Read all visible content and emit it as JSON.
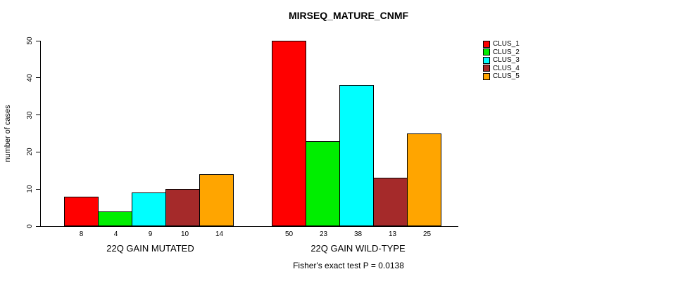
{
  "chart_data": {
    "type": "bar",
    "title": "MIRSEQ_MATURE_CNMF",
    "ylabel": "number of cases",
    "xlabel": "",
    "ylim": [
      0,
      50
    ],
    "yticks": [
      0,
      10,
      20,
      30,
      40,
      50
    ],
    "grid": false,
    "legend_position": "right",
    "groups": [
      {
        "label": "22Q GAIN MUTATED",
        "values": [
          8,
          4,
          9,
          10,
          14
        ]
      },
      {
        "label": "22Q GAIN WILD-TYPE",
        "values": [
          50,
          23,
          38,
          13,
          25
        ]
      }
    ],
    "series": [
      {
        "name": "CLUS_1",
        "color": "#FF0000"
      },
      {
        "name": "CLUS_2",
        "color": "#00EE00"
      },
      {
        "name": "CLUS_3",
        "color": "#00FFFF"
      },
      {
        "name": "CLUS_4",
        "color": "#A52A2A"
      },
      {
        "name": "CLUS_5",
        "color": "#FFA500"
      }
    ],
    "annotation": "Fisher's exact test P = 0.0138"
  }
}
